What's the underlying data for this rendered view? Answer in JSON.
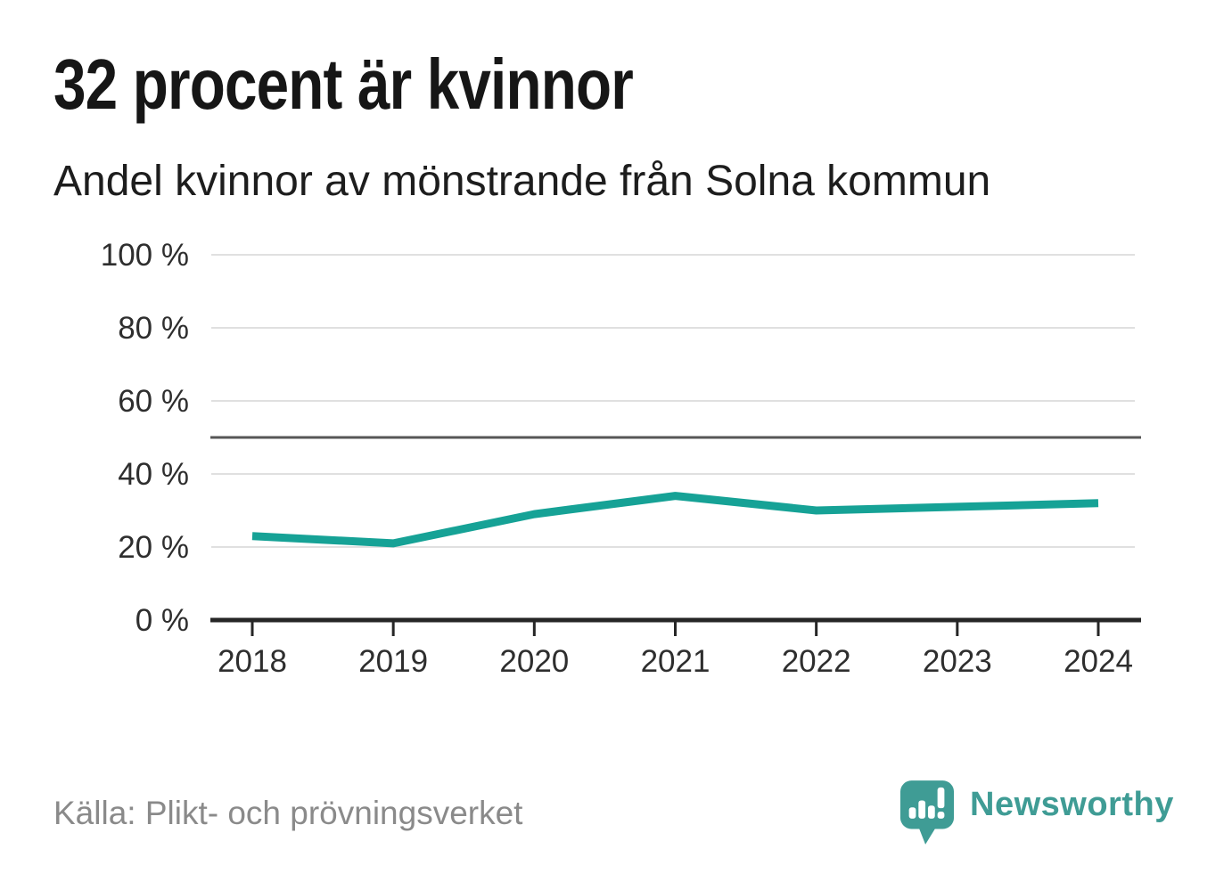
{
  "header": {
    "title": "32 procent är kvinnor",
    "subtitle": "Andel kvinnor av mönstrande från Solna kommun"
  },
  "footer": {
    "source": "Källa: Plikt- och prövningsverket",
    "brand": "Newsworthy",
    "logo_icon": "newsworthy-speech-bubble-bar-chart-icon"
  },
  "colors": {
    "line": "#16a296",
    "grid": "#e0e0e0",
    "reference_line": "#565656",
    "axis": "#262626",
    "tick_text": "#2e2e2e",
    "title_text": "#161616",
    "muted_text": "#8a8a8a",
    "brand": "#3f9c95",
    "background": "#ffffff"
  },
  "chart_data": {
    "type": "line",
    "title": "32 procent är kvinnor",
    "subtitle": "Andel kvinnor av mönstrande från Solna kommun",
    "x": [
      "2018",
      "2019",
      "2020",
      "2021",
      "2022",
      "2023",
      "2024"
    ],
    "series": [
      {
        "name": "Andel kvinnor av mönstrande (%)",
        "color": "#16a296",
        "values": [
          23,
          21,
          29,
          34,
          30,
          31,
          32
        ]
      }
    ],
    "unit": "%",
    "ylim": [
      0,
      100
    ],
    "yticks": {
      "values": [
        0,
        20,
        40,
        60,
        80,
        100
      ],
      "labels": [
        "0 %",
        "20 %",
        "40 %",
        "60 %",
        "80 %",
        "100 %"
      ]
    },
    "reference_line": 50,
    "grid": true,
    "legend": false,
    "xlabel": "",
    "ylabel": ""
  }
}
